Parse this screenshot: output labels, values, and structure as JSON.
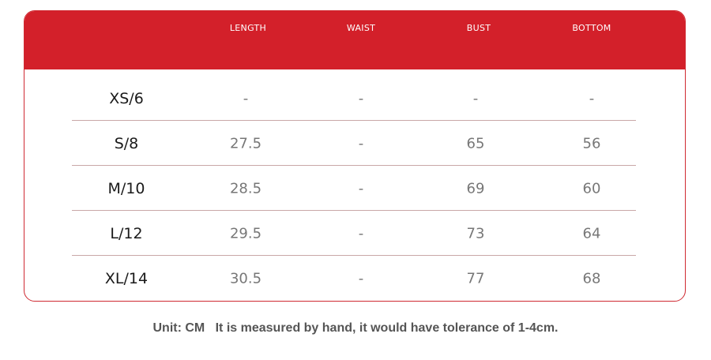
{
  "table": {
    "columns": [
      "LENGTH",
      "WAIST",
      "BUST",
      "BOTTOM"
    ],
    "rows": [
      {
        "size": "XS/6",
        "length": "-",
        "waist": "-",
        "bust": "-",
        "bottom": "-"
      },
      {
        "size": "S/8",
        "length": "27.5",
        "waist": "-",
        "bust": "65",
        "bottom": "56"
      },
      {
        "size": "M/10",
        "length": "28.5",
        "waist": "-",
        "bust": "69",
        "bottom": "60"
      },
      {
        "size": "L/12",
        "length": "29.5",
        "waist": "-",
        "bust": "73",
        "bottom": "64"
      },
      {
        "size": "XL/14",
        "length": "30.5",
        "waist": "-",
        "bust": "77",
        "bottom": "68"
      }
    ]
  },
  "footnote": {
    "unit": "Unit: CM",
    "note": "It is measured by hand, it would have tolerance of 1-4cm."
  },
  "colors": {
    "header_red": "#d3202a",
    "border": "#cf2a32",
    "row_divider": "#c9a7a7"
  }
}
